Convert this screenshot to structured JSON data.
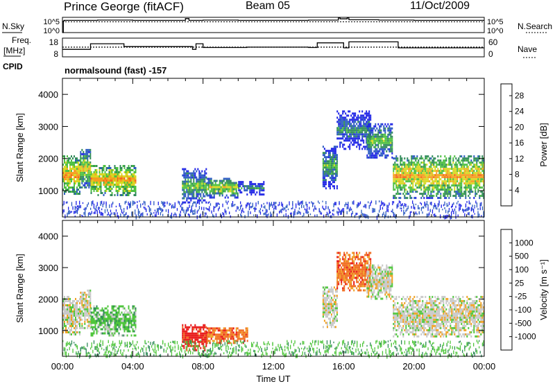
{
  "header": {
    "station": "Prince George (fitACF)",
    "beam": "Beam 05",
    "date": "11/Oct/2009"
  },
  "status_panels": {
    "nsky_label": "N.Sky",
    "nsearch_label": "N.Search",
    "freq_label_1": "Freq.",
    "freq_label_2": "[MHz]",
    "nave_label": "Nave",
    "cpid_label": "CPID",
    "cpid_value": "normalsound (fast) -157",
    "nsky_ticks": [
      "10^5",
      "10^0"
    ],
    "freq_ticks": [
      "18",
      "8"
    ],
    "nave_ticks": [
      "60",
      "0"
    ]
  },
  "chart_data": [
    {
      "type": "heatmap",
      "name": "power",
      "ylabel": "Slant Range [km]",
      "xlabel": "",
      "xlim_hours": [
        0,
        24
      ],
      "ylim": [
        180,
        4500
      ],
      "yticks": [
        "1000",
        "2000",
        "3000",
        "4000"
      ],
      "colorbar": {
        "label": "Power [dB]",
        "ticks": [
          "4",
          "8",
          "12",
          "16",
          "20",
          "24",
          "28"
        ],
        "range": [
          0,
          31
        ],
        "colors": [
          "#1f24e6",
          "#2a5ac0",
          "#2f8a58",
          "#4dc040",
          "#d8d822",
          "#f59e20",
          "#f26a1c",
          "#e81414"
        ]
      },
      "echo_regions": [
        {
          "t0": 0.0,
          "t1": 1.0,
          "r0": 900,
          "r1": 2100,
          "value": 20
        },
        {
          "t0": 1.0,
          "t1": 1.6,
          "r0": 1100,
          "r1": 2300,
          "value": 18
        },
        {
          "t0": 1.6,
          "t1": 4.2,
          "r0": 850,
          "r1": 1800,
          "value": 22
        },
        {
          "t0": 6.8,
          "t1": 8.2,
          "r0": 600,
          "r1": 1700,
          "value": 12
        },
        {
          "t0": 8.2,
          "t1": 10.0,
          "r0": 800,
          "r1": 1400,
          "value": 16
        },
        {
          "t0": 10.0,
          "t1": 11.5,
          "r0": 900,
          "r1": 1300,
          "value": 9
        },
        {
          "t0": 14.8,
          "t1": 15.6,
          "r0": 1100,
          "r1": 2400,
          "value": 14
        },
        {
          "t0": 15.6,
          "t1": 17.5,
          "r0": 2300,
          "r1": 3500,
          "value": 10
        },
        {
          "t0": 17.3,
          "t1": 18.8,
          "r0": 2000,
          "r1": 3100,
          "value": 14
        },
        {
          "t0": 18.8,
          "t1": 24.0,
          "r0": 800,
          "r1": 2100,
          "value": 22
        }
      ]
    },
    {
      "type": "heatmap",
      "name": "velocity",
      "ylabel": "Slant Range [km]",
      "xlabel": "Time UT",
      "xlim_hours": [
        0,
        24
      ],
      "ylim": [
        180,
        4500
      ],
      "yticks": [
        "1000",
        "2000",
        "3000",
        "4000"
      ],
      "xticks": [
        "00:00",
        "04:00",
        "08:00",
        "12:00",
        "16:00",
        "20:00",
        "00:00"
      ],
      "colorbar": {
        "label": "Velocity [m s⁻¹]",
        "ticks": [
          "1000",
          "500",
          "100",
          "25",
          "-25",
          "-100",
          "-500",
          "-1000"
        ],
        "colors": [
          "#1f30d8",
          "#2a6cc6",
          "#2f8a58",
          "#4fc63c",
          "#c8c8c8",
          "#f0a020",
          "#f06a1c",
          "#e81414"
        ]
      },
      "echo_regions": [
        {
          "t0": 0.0,
          "t1": 1.0,
          "r0": 900,
          "r1": 2100,
          "value": 0
        },
        {
          "t0": 1.0,
          "t1": 1.6,
          "r0": 1100,
          "r1": 2300,
          "value": 0
        },
        {
          "t0": 1.6,
          "t1": 4.2,
          "r0": 850,
          "r1": 1800,
          "value": 50
        },
        {
          "t0": 6.8,
          "t1": 8.2,
          "r0": 400,
          "r1": 1200,
          "value": -300
        },
        {
          "t0": 8.2,
          "t1": 10.5,
          "r0": 600,
          "r1": 1100,
          "value": -200
        },
        {
          "t0": 14.8,
          "t1": 15.6,
          "r0": 1100,
          "r1": 2400,
          "value": 0
        },
        {
          "t0": 15.6,
          "t1": 17.5,
          "r0": 2300,
          "r1": 3500,
          "value": -150
        },
        {
          "t0": 17.3,
          "t1": 18.8,
          "r0": 2000,
          "r1": 3100,
          "value": 0
        },
        {
          "t0": 18.8,
          "t1": 24.0,
          "r0": 800,
          "r1": 2100,
          "value": 0
        }
      ]
    },
    {
      "type": "line",
      "name": "sky-noise",
      "ylim_log10": [
        0,
        5
      ],
      "x_hours": [
        0,
        0.05,
        0.1,
        2,
        4,
        6.9,
        7.0,
        7.2,
        8,
        10,
        12,
        14,
        15.7,
        15.8,
        16.2,
        16.3,
        18,
        20,
        24
      ],
      "y_log10": [
        0,
        3.8,
        4.0,
        4.1,
        4.0,
        4.0,
        4.6,
        4.0,
        4.1,
        4.0,
        4.0,
        4.1,
        4.8,
        4.5,
        4.8,
        4.2,
        4.1,
        4.0,
        4.0
      ]
    },
    {
      "type": "line",
      "name": "frequency",
      "ylim": [
        8,
        18
      ],
      "x_hours": [
        0,
        1.2,
        1.6,
        3.5,
        7.4,
        7.6,
        8.0,
        10.5,
        14.0,
        14.5,
        16.0,
        16.3,
        18.9,
        19.1,
        24
      ],
      "y": [
        12,
        12,
        15,
        13.5,
        12,
        15,
        13,
        13.2,
        13,
        15.5,
        12.8,
        16,
        16,
        12.8,
        12.8
      ]
    }
  ]
}
